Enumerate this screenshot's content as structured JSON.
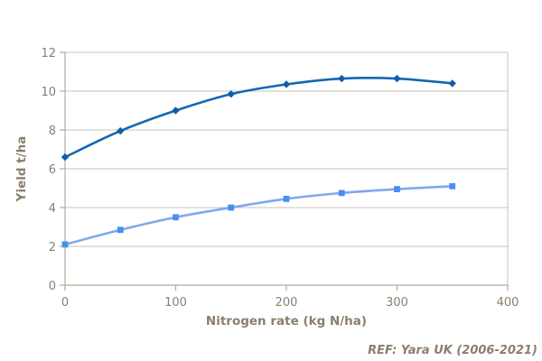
{
  "chart_data": {
    "type": "line",
    "title": "",
    "xlabel": "Nitrogen rate (kg N/ha)",
    "ylabel": "Yield t/ha",
    "ref_note": "REF: Yara UK (2006-2021)",
    "x": [
      0,
      50,
      100,
      150,
      200,
      250,
      300,
      350
    ],
    "series": [
      {
        "name": "dark-blue-curve",
        "marker": "diamond",
        "line_color": "#1268b4",
        "marker_color": "#0f5da9",
        "values": [
          6.6,
          7.95,
          9.0,
          9.85,
          10.35,
          10.65,
          10.65,
          10.4
        ]
      },
      {
        "name": "light-blue-curve",
        "marker": "square",
        "line_color": "#82a8ee",
        "marker_color": "#4a8ef2",
        "values": [
          2.1,
          2.85,
          3.5,
          4.0,
          4.45,
          4.75,
          4.95,
          5.1
        ]
      }
    ],
    "xlim": [
      0,
      400
    ],
    "ylim": [
      0,
      12
    ],
    "xticks": [
      0,
      100,
      200,
      300,
      400
    ],
    "yticks": [
      0,
      2,
      4,
      6,
      8,
      10,
      12
    ],
    "grid": "horizontal",
    "legend": "none",
    "colors": {
      "text": "#8b7e6d",
      "gridline": "#c9c1b6",
      "axis": "#b3a99c",
      "background": "#ffffff"
    }
  }
}
